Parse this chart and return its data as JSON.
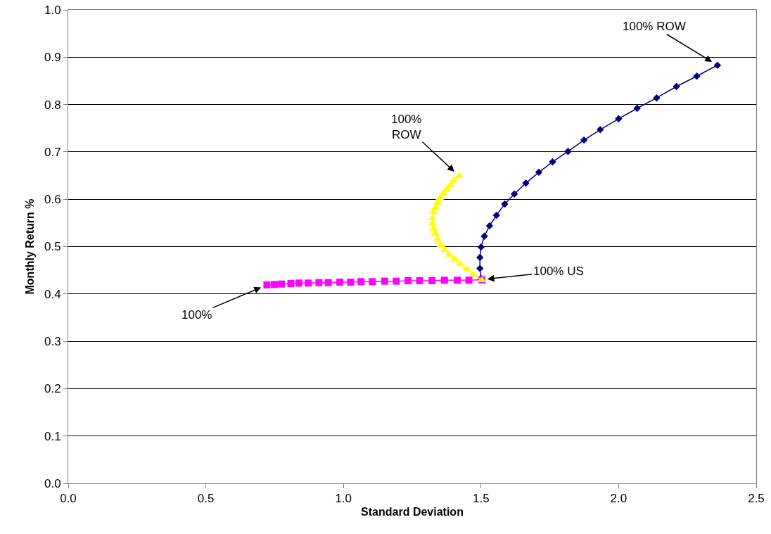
{
  "chart_data": {
    "type": "line",
    "xlabel": "Standard Deviation",
    "ylabel": "Monthly Return %",
    "xlim": [
      0,
      2.5
    ],
    "xticks": [
      {
        "value": 0,
        "label": "0.0"
      },
      {
        "value": 0.5,
        "label": "0.5"
      },
      {
        "value": 1,
        "label": "1.0"
      },
      {
        "value": 1.5,
        "label": "1.5"
      },
      {
        "value": 2,
        "label": "2.0"
      },
      {
        "value": 2.5,
        "label": "2.5"
      }
    ],
    "ylim": [
      0,
      1
    ],
    "yticks": [
      {
        "value": 0,
        "label": "0.0"
      },
      {
        "value": 0.1,
        "label": "0.1"
      },
      {
        "value": 0.2,
        "label": "0.2"
      },
      {
        "value": 0.3,
        "label": "0.3"
      },
      {
        "value": 0.4,
        "label": "0.4"
      },
      {
        "value": 0.5,
        "label": "0.5"
      },
      {
        "value": 0.6,
        "label": "0.6"
      },
      {
        "value": 0.7,
        "label": "0.7"
      },
      {
        "value": 0.8,
        "label": "0.8"
      },
      {
        "value": 0.9,
        "label": "0.9"
      },
      {
        "value": 1,
        "label": "1.0"
      }
    ],
    "grid": "y",
    "series": [
      {
        "color": "#000080",
        "marker": "diamond",
        "x": [
          1.5,
          1.496,
          1.496,
          1.5,
          1.512,
          1.531,
          1.556,
          1.586,
          1.621,
          1.663,
          1.71,
          1.76,
          1.816,
          1.874,
          1.933,
          2.0,
          2.067,
          2.138,
          2.21,
          2.284,
          2.359
        ],
        "values": [
          0.433,
          0.454,
          0.477,
          0.499,
          0.522,
          0.544,
          0.566,
          0.59,
          0.611,
          0.634,
          0.657,
          0.679,
          0.701,
          0.725,
          0.747,
          0.77,
          0.792,
          0.814,
          0.838,
          0.86,
          0.883
        ]
      },
      {
        "color": "#ff00ff",
        "marker": "square",
        "x": [
          0.722,
          0.749,
          0.775,
          0.809,
          0.838,
          0.872,
          0.911,
          0.945,
          0.987,
          1.026,
          1.064,
          1.105,
          1.15,
          1.192,
          1.235,
          1.277,
          1.322,
          1.367,
          1.414,
          1.456,
          1.503
        ],
        "values": [
          0.419,
          0.42,
          0.421,
          0.422,
          0.423,
          0.423,
          0.424,
          0.424,
          0.425,
          0.425,
          0.426,
          0.426,
          0.427,
          0.427,
          0.428,
          0.428,
          0.428,
          0.429,
          0.429,
          0.429,
          0.43
        ]
      },
      {
        "color": "#ffff00",
        "marker": "triangle",
        "x": [
          1.503,
          1.473,
          1.448,
          1.424,
          1.403,
          1.384,
          1.368,
          1.354,
          1.341,
          1.333,
          1.327,
          1.324,
          1.324,
          1.328,
          1.335,
          1.341,
          1.35,
          1.363,
          1.375,
          1.388,
          1.401,
          1.42
        ],
        "values": [
          0.429,
          0.441,
          0.452,
          0.464,
          0.474,
          0.483,
          0.493,
          0.503,
          0.516,
          0.528,
          0.538,
          0.549,
          0.56,
          0.573,
          0.582,
          0.592,
          0.602,
          0.612,
          0.621,
          0.63,
          0.64,
          0.649
        ]
      }
    ],
    "annotations": [
      {
        "text": "100% ROW",
        "x": 2.359,
        "y": 0.883
      },
      {
        "text": "100%\nROW",
        "x": 1.42,
        "y": 0.649
      },
      {
        "text": "100% US",
        "x": 1.5,
        "y": 0.43
      },
      {
        "text": "100%",
        "x": 0.722,
        "y": 0.419
      }
    ]
  }
}
